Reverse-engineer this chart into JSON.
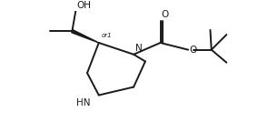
{
  "bg_color": "#ffffff",
  "line_color": "#1a1a1a",
  "line_width": 1.4,
  "font_size": 7.5,
  "fig_width": 2.84,
  "fig_height": 1.34,
  "dpi": 100,
  "xlim": [
    0,
    10
  ],
  "ylim": [
    0,
    4.7
  ]
}
